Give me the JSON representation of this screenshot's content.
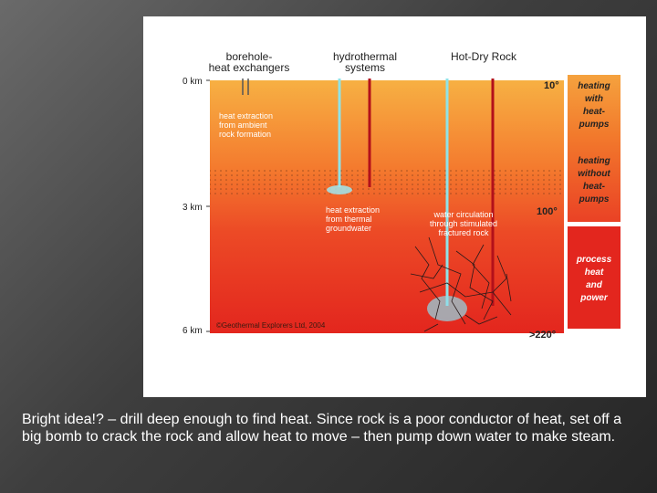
{
  "diagram": {
    "headers": [
      [
        "borehole-",
        "heat exchangers"
      ],
      [
        "hydrothermal",
        "systems"
      ],
      [
        "Hot-Dry Rock"
      ]
    ],
    "depths": [
      "0 km",
      "3 km",
      "6 km"
    ],
    "temperatures": [
      "10°",
      "100°",
      ">220°"
    ],
    "annotations": [
      [
        "heat extraction",
        "from ambient",
        "rock formation"
      ],
      [
        "heat extraction",
        "from thermal",
        "groundwater"
      ],
      [
        "water circulation",
        "through stimulated",
        "fractured rock"
      ]
    ],
    "copyright": "©Geothermal Explorers Ltd, 2004",
    "uses": [
      [
        "heating",
        "with",
        "heat-",
        "pumps"
      ],
      [
        "heating",
        "without",
        "heat-",
        "pumps"
      ],
      [
        "process",
        "heat",
        "and",
        "power"
      ]
    ]
  },
  "caption": "Bright idea!? – drill deep enough to find heat. Since rock is a poor conductor of heat, set off a big bomb to crack the rock and allow heat to move – then pump down water to make steam."
}
